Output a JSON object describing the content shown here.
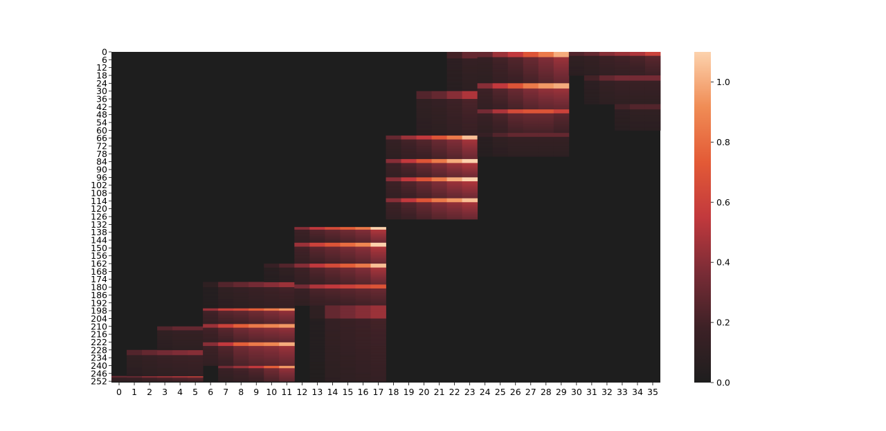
{
  "chart_data": {
    "type": "heatmap",
    "title": "",
    "xlabel": "",
    "ylabel": "",
    "n_rows": 253,
    "n_cols": 36,
    "x_tick_labels": [
      "0",
      "1",
      "2",
      "3",
      "4",
      "5",
      "6",
      "7",
      "8",
      "9",
      "10",
      "11",
      "12",
      "13",
      "14",
      "15",
      "16",
      "17",
      "18",
      "19",
      "20",
      "21",
      "22",
      "23",
      "24",
      "25",
      "26",
      "27",
      "28",
      "29",
      "30",
      "31",
      "32",
      "33",
      "34",
      "35"
    ],
    "y_tick_labels": [
      "0",
      "6",
      "12",
      "18",
      "24",
      "30",
      "36",
      "42",
      "48",
      "54",
      "60",
      "66",
      "72",
      "78",
      "84",
      "90",
      "96",
      "102",
      "108",
      "114",
      "120",
      "126",
      "132",
      "138",
      "144",
      "150",
      "156",
      "162",
      "168",
      "174",
      "180",
      "186",
      "192",
      "198",
      "204",
      "210",
      "216",
      "222",
      "228",
      "234",
      "240",
      "246",
      "252"
    ],
    "colorbar": {
      "range": [
        0.0,
        1.1
      ],
      "tick_labels": [
        "0.0",
        "0.2",
        "0.4",
        "0.6",
        "0.8",
        "1.0"
      ],
      "tick_values": [
        0.0,
        0.2,
        0.4,
        0.6,
        0.8,
        1.0
      ],
      "colors": [
        "#1e1e1e",
        "#3d2126",
        "#7a2c36",
        "#c2393d",
        "#e35a36",
        "#f08c55",
        "#fcd2ad"
      ]
    },
    "grid": false,
    "blocks": [
      {
        "cols": [
          0,
          5
        ],
        "rows": [
          204,
          252
        ],
        "heads": [
          {
            "start": 248,
            "end": 252,
            "values": [
              0.33,
              0.35,
              0.45,
              0.5,
              0.55,
              0.6
            ]
          },
          {
            "start": 228,
            "end": 248,
            "values": [
              0.0,
              0.25,
              0.3,
              0.35,
              0.38,
              0.4
            ]
          },
          {
            "start": 210,
            "end": 228,
            "values": [
              0.0,
              0.0,
              0.0,
              0.25,
              0.3,
              0.3
            ]
          }
        ]
      },
      {
        "cols": [
          6,
          11
        ],
        "rows": [
          162,
          252
        ],
        "heads": [
          {
            "start": 240,
            "end": 252,
            "values": [
              0.0,
              0.35,
              0.45,
              0.55,
              0.75,
              0.95
            ]
          },
          {
            "start": 222,
            "end": 240,
            "values": [
              0.4,
              0.55,
              0.75,
              0.85,
              0.9,
              1.0
            ]
          },
          {
            "start": 208,
            "end": 222,
            "values": [
              0.45,
              0.6,
              0.75,
              0.85,
              0.9,
              0.95
            ]
          },
          {
            "start": 196,
            "end": 208,
            "values": [
              0.45,
              0.6,
              0.65,
              0.75,
              0.85,
              0.95
            ]
          },
          {
            "start": 176,
            "end": 196,
            "values": [
              0.1,
              0.25,
              0.3,
              0.35,
              0.4,
              0.45
            ]
          },
          {
            "start": 162,
            "end": 176,
            "values": [
              0.0,
              0.0,
              0.0,
              0.0,
              0.15,
              0.25
            ]
          }
        ]
      },
      {
        "cols": [
          12,
          17
        ],
        "rows": [
          130,
          252
        ],
        "heads": [
          {
            "start": 134,
            "end": 146,
            "values": [
              0.4,
              0.55,
              0.65,
              0.75,
              0.85,
              1.1
            ]
          },
          {
            "start": 146,
            "end": 162,
            "values": [
              0.45,
              0.6,
              0.7,
              0.8,
              0.9,
              1.1
            ]
          },
          {
            "start": 162,
            "end": 178,
            "values": [
              0.4,
              0.55,
              0.65,
              0.75,
              0.85,
              1.05
            ]
          },
          {
            "start": 178,
            "end": 194,
            "values": [
              0.35,
              0.5,
              0.55,
              0.6,
              0.65,
              0.7
            ]
          },
          {
            "start": 194,
            "end": 252,
            "values": [
              0.0,
              0.1,
              0.3,
              0.35,
              0.4,
              0.45
            ]
          }
        ]
      },
      {
        "cols": [
          18,
          23
        ],
        "rows": [
          0,
          128
        ],
        "heads": [
          {
            "start": 0,
            "end": 30,
            "values": [
              0.0,
              0.0,
              0.0,
              0.0,
              0.2,
              0.3
            ]
          },
          {
            "start": 30,
            "end": 64,
            "values": [
              0.0,
              0.0,
              0.25,
              0.3,
              0.4,
              0.5
            ]
          },
          {
            "start": 64,
            "end": 82,
            "values": [
              0.3,
              0.45,
              0.55,
              0.7,
              0.85,
              1.05
            ]
          },
          {
            "start": 82,
            "end": 96,
            "values": [
              0.4,
              0.55,
              0.7,
              0.85,
              1.0,
              1.1
            ]
          },
          {
            "start": 96,
            "end": 112,
            "values": [
              0.4,
              0.55,
              0.7,
              0.85,
              1.0,
              1.1
            ]
          },
          {
            "start": 112,
            "end": 128,
            "values": [
              0.4,
              0.55,
              0.7,
              0.85,
              0.95,
              1.05
            ]
          }
        ]
      },
      {
        "cols": [
          24,
          29
        ],
        "rows": [
          0,
          80
        ],
        "heads": [
          {
            "start": 0,
            "end": 24,
            "values": [
              0.3,
              0.45,
              0.55,
              0.7,
              0.85,
              1.0
            ]
          },
          {
            "start": 24,
            "end": 44,
            "values": [
              0.4,
              0.55,
              0.7,
              0.85,
              0.95,
              1.0
            ]
          },
          {
            "start": 44,
            "end": 62,
            "values": [
              0.35,
              0.5,
              0.65,
              0.7,
              0.7,
              0.6
            ]
          },
          {
            "start": 62,
            "end": 80,
            "values": [
              0.15,
              0.25,
              0.3,
              0.3,
              0.3,
              0.3
            ]
          }
        ]
      },
      {
        "cols": [
          30,
          35
        ],
        "rows": [
          0,
          60
        ],
        "heads": [
          {
            "start": 0,
            "end": 18,
            "values": [
              0.25,
              0.3,
              0.4,
              0.45,
              0.5,
              0.6
            ]
          },
          {
            "start": 18,
            "end": 40,
            "values": [
              0.0,
              0.2,
              0.3,
              0.35,
              0.35,
              0.35
            ]
          },
          {
            "start": 40,
            "end": 60,
            "values": [
              0.0,
              0.0,
              0.0,
              0.2,
              0.25,
              0.25
            ]
          }
        ]
      }
    ]
  }
}
